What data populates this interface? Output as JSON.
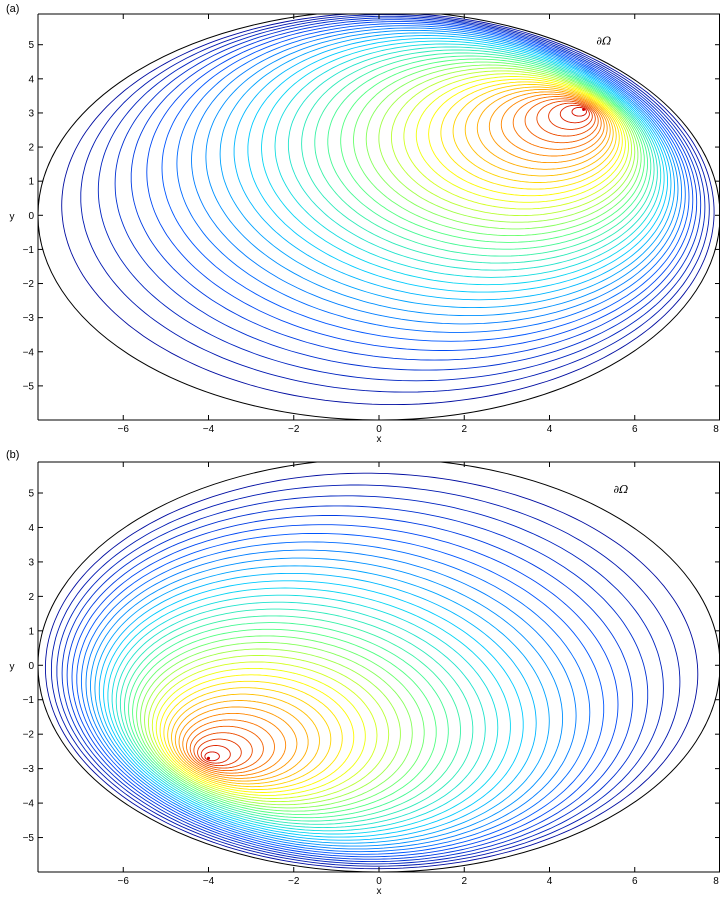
{
  "chart_data": [
    {
      "type": "contour",
      "panel_label": "(a)",
      "xlabel": "x",
      "ylabel": "y",
      "xlim": [
        -8,
        8
      ],
      "ylim": [
        -6,
        5.9
      ],
      "xticks": [
        -6,
        -4,
        -2,
        0,
        2,
        4,
        6,
        8
      ],
      "xtick_labels": [
        "−6",
        "−4",
        "−2",
        "0",
        "2",
        "4",
        "6",
        "8"
      ],
      "yticks": [
        -5,
        -4,
        -3,
        -2,
        -1,
        0,
        1,
        2,
        3,
        4,
        5
      ],
      "ytick_labels": [
        "−5",
        "−4",
        "−3",
        "−2",
        "−1",
        "0",
        "1",
        "2",
        "3",
        "4",
        "5"
      ],
      "domain_ellipse": {
        "center": [
          0,
          0
        ],
        "semi_x": 8,
        "semi_y": 6
      },
      "peak": [
        4.8,
        3.1
      ],
      "level_count": 40,
      "colormap": [
        "#00008f",
        "#0050ff",
        "#00d0ff",
        "#50ff80",
        "#ffff00",
        "#ff8000",
        "#d00000"
      ],
      "boundary_color": "#000000",
      "annotation": "∂Ω"
    },
    {
      "type": "contour",
      "panel_label": "(b)",
      "xlabel": "x",
      "ylabel": "y",
      "xlim": [
        -8,
        8
      ],
      "ylim": [
        -6,
        5.9
      ],
      "xticks": [
        -6,
        -4,
        -2,
        0,
        2,
        4,
        6,
        8
      ],
      "xtick_labels": [
        "−6",
        "−4",
        "−2",
        "0",
        "2",
        "4",
        "6",
        "8"
      ],
      "yticks": [
        -5,
        -4,
        -3,
        -2,
        -1,
        0,
        1,
        2,
        3,
        4,
        5
      ],
      "ytick_labels": [
        "−5",
        "−4",
        "−3",
        "−2",
        "−1",
        "0",
        "1",
        "2",
        "3",
        "4",
        "5"
      ],
      "domain_ellipse": {
        "center": [
          0,
          0
        ],
        "semi_x": 8,
        "semi_y": 6
      },
      "peak": [
        -4,
        -2.7
      ],
      "level_count": 40,
      "colormap": [
        "#00008f",
        "#0050ff",
        "#00d0ff",
        "#50ff80",
        "#ffff00",
        "#ff8000",
        "#d00000"
      ],
      "boundary_color": "#000000",
      "annotation": "∂Ω"
    }
  ]
}
